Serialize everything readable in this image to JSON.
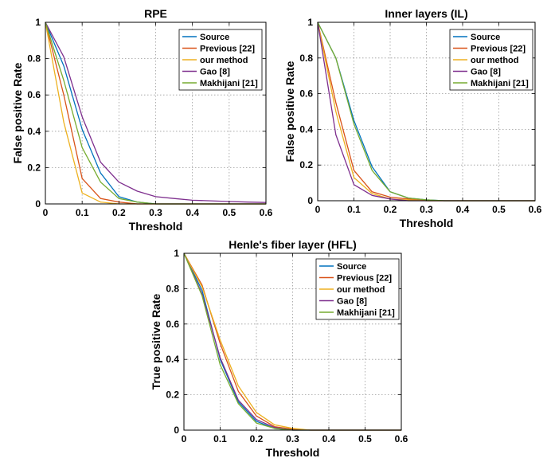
{
  "series_colors": [
    "#0072BD",
    "#D95319",
    "#EDB120",
    "#7E2F8E",
    "#77AC30"
  ],
  "chart_data": [
    {
      "type": "line",
      "title": "RPE",
      "xlabel": "Threshold",
      "ylabel": "False positive Rate",
      "xlim": [
        0,
        0.6
      ],
      "ylim": [
        0,
        1
      ],
      "xticks": [
        0,
        0.1,
        0.2,
        0.3,
        0.4,
        0.5,
        0.6
      ],
      "yticks": [
        0,
        0.2,
        0.4,
        0.6,
        0.8,
        1
      ],
      "xtick_labels": [
        "0",
        "0.1",
        "0.2",
        "0.3",
        "0.4",
        "0.5",
        "0.6"
      ],
      "ytick_labels": [
        "0",
        "0.2",
        "0.4",
        "0.6",
        "0.8",
        "1"
      ],
      "grid": true,
      "legend_position": "top-right",
      "x": [
        0,
        0.05,
        0.1,
        0.15,
        0.2,
        0.25,
        0.3,
        0.35,
        0.4,
        0.45,
        0.5,
        0.55,
        0.6
      ],
      "series": [
        {
          "name": "Source",
          "values": [
            1,
            0.76,
            0.41,
            0.17,
            0.04,
            0.01,
            0,
            0,
            0,
            0,
            0,
            0,
            0
          ]
        },
        {
          "name": "Previous [22]",
          "values": [
            1,
            0.6,
            0.14,
            0.03,
            0.01,
            0,
            0,
            0,
            0,
            0,
            0,
            0,
            0
          ]
        },
        {
          "name": "our method",
          "values": [
            1,
            0.45,
            0.06,
            0.01,
            0,
            0,
            0,
            0,
            0,
            0,
            0,
            0,
            0
          ]
        },
        {
          "name": "Gao [8]",
          "values": [
            1,
            0.81,
            0.48,
            0.23,
            0.12,
            0.07,
            0.04,
            0.03,
            0.02,
            0.017,
            0.013,
            0.01,
            0.008
          ]
        },
        {
          "name": "Makhijani [21]",
          "values": [
            1,
            0.68,
            0.31,
            0.12,
            0.03,
            0.01,
            0,
            0,
            0,
            0,
            0,
            0,
            0
          ]
        }
      ]
    },
    {
      "type": "line",
      "title": "Inner layers (IL)",
      "xlabel": "Threshold",
      "ylabel": "False positive Rate",
      "xlim": [
        0,
        0.6
      ],
      "ylim": [
        0,
        1
      ],
      "xticks": [
        0,
        0.1,
        0.2,
        0.3,
        0.4,
        0.5,
        0.6
      ],
      "yticks": [
        0,
        0.2,
        0.4,
        0.6,
        0.8,
        1
      ],
      "xtick_labels": [
        "0",
        "0.1",
        "0.2",
        "0.3",
        "0.4",
        "0.5",
        "0.6"
      ],
      "ytick_labels": [
        "0",
        "0.2",
        "0.4",
        "0.6",
        "0.8",
        "1"
      ],
      "grid": true,
      "legend_position": "top-right",
      "x": [
        0,
        0.05,
        0.1,
        0.15,
        0.2,
        0.25,
        0.3,
        0.35,
        0.4,
        0.45,
        0.5,
        0.55,
        0.6
      ],
      "series": [
        {
          "name": "Source",
          "values": [
            1,
            0.8,
            0.45,
            0.19,
            0.05,
            0.015,
            0.005,
            0,
            0,
            0,
            0,
            0,
            0
          ]
        },
        {
          "name": "Previous [22]",
          "values": [
            1,
            0.55,
            0.17,
            0.05,
            0.02,
            0.01,
            0,
            0,
            0,
            0,
            0,
            0,
            0
          ]
        },
        {
          "name": "our method",
          "values": [
            1,
            0.5,
            0.13,
            0.04,
            0.01,
            0.005,
            0,
            0,
            0,
            0,
            0,
            0,
            0
          ]
        },
        {
          "name": "Gao [8]",
          "values": [
            1,
            0.37,
            0.09,
            0.03,
            0.01,
            0,
            0,
            0,
            0,
            0,
            0,
            0,
            0
          ]
        },
        {
          "name": "Makhijani [21]",
          "values": [
            1,
            0.8,
            0.43,
            0.17,
            0.05,
            0.015,
            0.005,
            0,
            0,
            0,
            0,
            0,
            0
          ]
        }
      ]
    },
    {
      "type": "line",
      "title": "Henle's fiber layer (HFL)",
      "xlabel": "Threshold",
      "ylabel": "True positive Rate",
      "xlim": [
        0,
        0.6
      ],
      "ylim": [
        0,
        1
      ],
      "xticks": [
        0,
        0.1,
        0.2,
        0.3,
        0.4,
        0.5,
        0.6
      ],
      "yticks": [
        0,
        0.2,
        0.4,
        0.6,
        0.8,
        1
      ],
      "xtick_labels": [
        "0",
        "0.1",
        "0.2",
        "0.3",
        "0.4",
        "0.5",
        "0.6"
      ],
      "ytick_labels": [
        "0",
        "0.2",
        "0.4",
        "0.6",
        "0.8",
        "1"
      ],
      "grid": true,
      "legend_position": "top-right",
      "x": [
        0,
        0.05,
        0.1,
        0.15,
        0.2,
        0.25,
        0.3,
        0.35,
        0.4,
        0.45,
        0.5,
        0.55,
        0.6
      ],
      "series": [
        {
          "name": "Source",
          "values": [
            1,
            0.79,
            0.4,
            0.16,
            0.05,
            0.01,
            0,
            0,
            0,
            0,
            0,
            0,
            0
          ]
        },
        {
          "name": "Previous [22]",
          "values": [
            1,
            0.82,
            0.49,
            0.22,
            0.08,
            0.02,
            0.005,
            0,
            0,
            0,
            0,
            0,
            0
          ]
        },
        {
          "name": "our method",
          "values": [
            1,
            0.81,
            0.51,
            0.25,
            0.1,
            0.03,
            0.01,
            0,
            0,
            0,
            0,
            0,
            0
          ]
        },
        {
          "name": "Gao [8]",
          "values": [
            1,
            0.77,
            0.41,
            0.17,
            0.06,
            0.015,
            0,
            0,
            0,
            0,
            0,
            0,
            0
          ]
        },
        {
          "name": "Makhijani [21]",
          "values": [
            1,
            0.76,
            0.37,
            0.15,
            0.04,
            0.01,
            0,
            0,
            0,
            0,
            0,
            0,
            0
          ]
        }
      ]
    }
  ]
}
